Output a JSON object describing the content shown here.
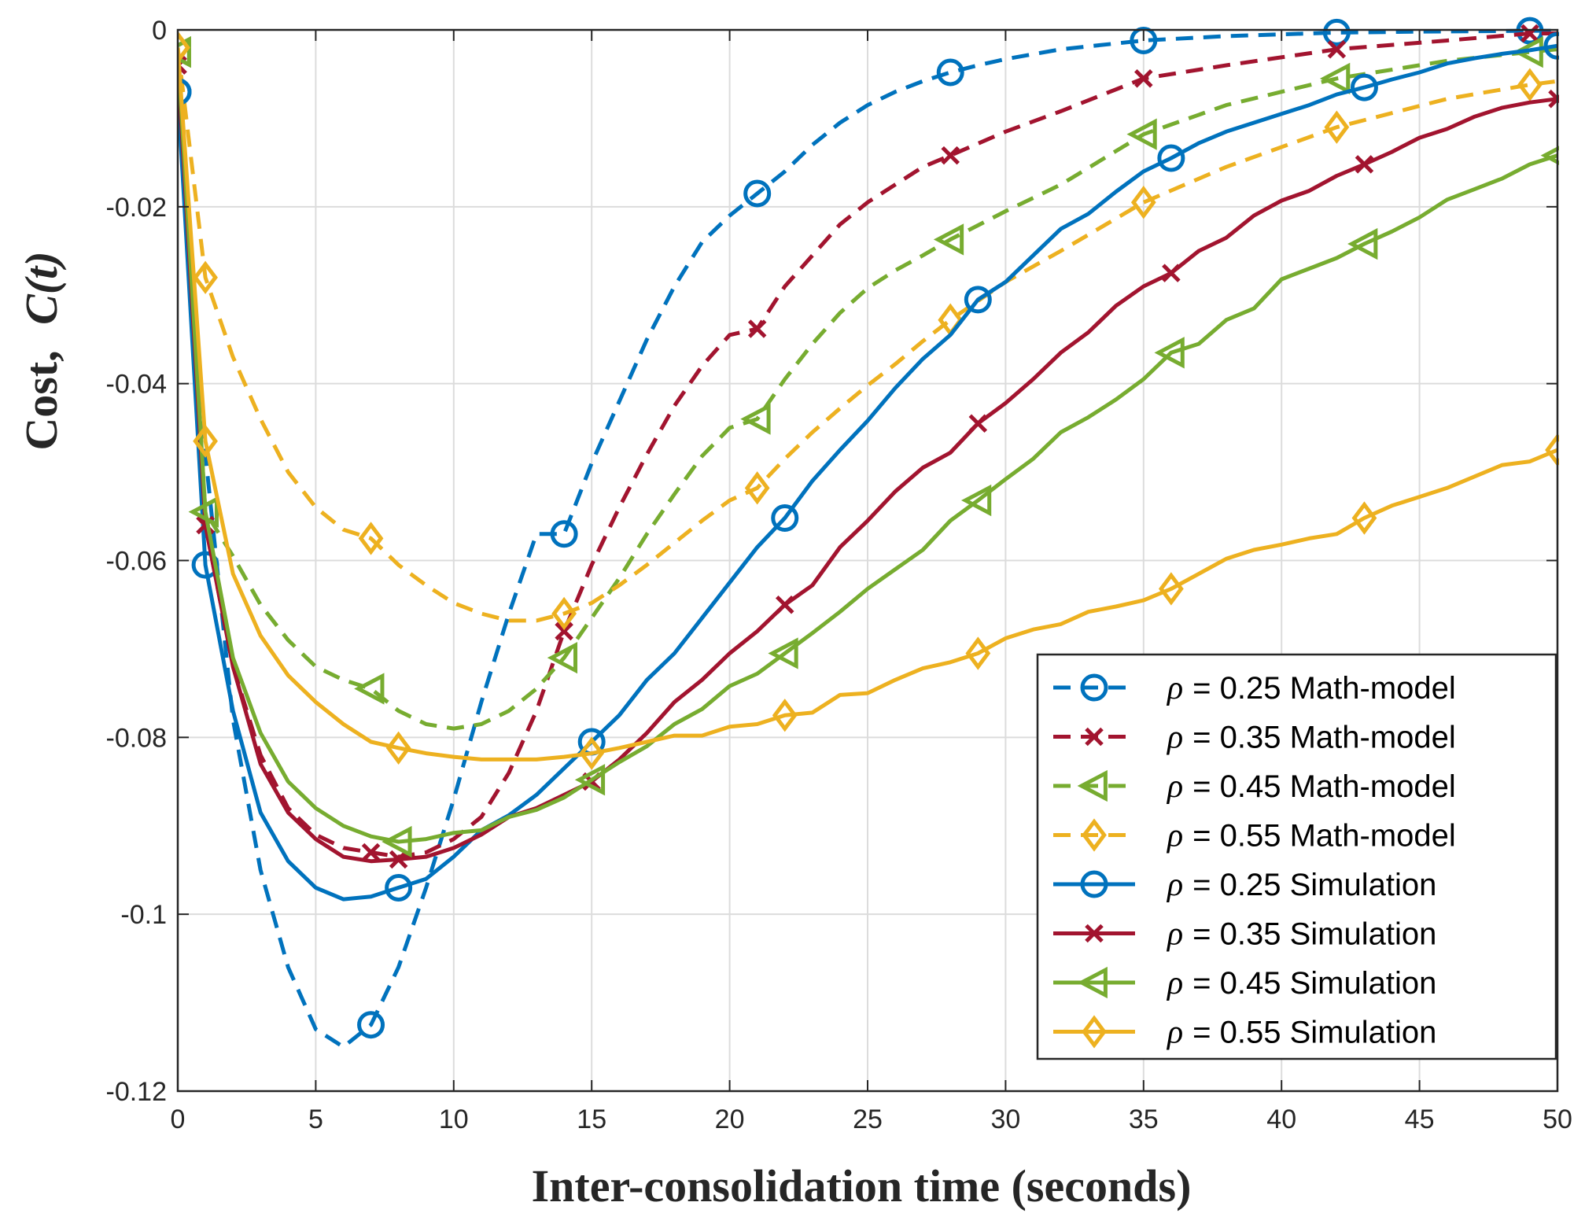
{
  "chart_data": {
    "type": "line",
    "title": "",
    "xlabel": "Inter-consolidation time (seconds)",
    "ylabel_prefix": "Cost,",
    "ylabel_math": "C(t)",
    "xlim": [
      0,
      50
    ],
    "ylim": [
      -0.12,
      0
    ],
    "xticks": [
      0,
      5,
      10,
      15,
      20,
      25,
      30,
      35,
      40,
      45,
      50
    ],
    "yticks": [
      0,
      -0.02,
      -0.04,
      -0.06,
      -0.08,
      -0.1,
      -0.12
    ],
    "xtick_labels": [
      "0",
      "5",
      "10",
      "15",
      "20",
      "25",
      "30",
      "35",
      "40",
      "45",
      "50"
    ],
    "ytick_labels": [
      "0",
      "-0.02",
      "-0.04",
      "-0.06",
      "-0.08",
      "-0.1",
      "-0.12"
    ],
    "grid": true,
    "legend_position": "bottom-right",
    "series": [
      {
        "name": "ρ = 0.25 Math-model",
        "rho_symbol": "ρ",
        "label_rest": "= 0.25 Math-model",
        "style": "dashed",
        "marker": "circle",
        "color": "#0072BD",
        "x": [
          0,
          1,
          2,
          3,
          4,
          5,
          6,
          7,
          8,
          9,
          10,
          11,
          12,
          13,
          14,
          15,
          16,
          17,
          18,
          19,
          20,
          21,
          22,
          23,
          24,
          25,
          26,
          27,
          28,
          29,
          30,
          32,
          35,
          38,
          42,
          45,
          49,
          50
        ],
        "y": [
          -0.007,
          -0.048,
          -0.078,
          -0.095,
          -0.106,
          -0.113,
          -0.115,
          -0.1125,
          -0.106,
          -0.097,
          -0.087,
          -0.076,
          -0.066,
          -0.057,
          -0.057,
          -0.049,
          -0.042,
          -0.035,
          -0.029,
          -0.024,
          -0.021,
          -0.0185,
          -0.016,
          -0.013,
          -0.0105,
          -0.0085,
          -0.007,
          -0.0058,
          -0.0048,
          -0.004,
          -0.0033,
          -0.0022,
          -0.0012,
          -0.0007,
          -0.0003,
          -0.0002,
          -0.0001,
          -0.0001
        ],
        "marker_x": [
          0,
          7,
          14,
          21,
          28,
          35,
          42,
          49
        ]
      },
      {
        "name": "ρ = 0.35 Math-model",
        "rho_symbol": "ρ",
        "label_rest": "= 0.35 Math-model",
        "style": "dashed",
        "marker": "x",
        "color": "#A2142F",
        "x": [
          0,
          1,
          2,
          3,
          4,
          5,
          6,
          7,
          8,
          9,
          10,
          11,
          12,
          13,
          14,
          15,
          16,
          17,
          18,
          19,
          20,
          21,
          22,
          23,
          24,
          25,
          26,
          27,
          28,
          30,
          32,
          35,
          38,
          42,
          46,
          49,
          50
        ],
        "y": [
          -0.004,
          -0.056,
          -0.072,
          -0.082,
          -0.088,
          -0.091,
          -0.0925,
          -0.093,
          -0.0935,
          -0.093,
          -0.0915,
          -0.089,
          -0.084,
          -0.077,
          -0.068,
          -0.0605,
          -0.054,
          -0.048,
          -0.0425,
          -0.038,
          -0.0345,
          -0.0338,
          -0.029,
          -0.0255,
          -0.022,
          -0.0195,
          -0.0175,
          -0.0155,
          -0.0142,
          -0.0115,
          -0.0092,
          -0.0055,
          -0.004,
          -0.0022,
          -0.0012,
          -0.0004,
          -0.0004
        ],
        "marker_x": [
          0,
          1,
          7,
          14,
          21,
          28,
          35,
          42,
          49
        ]
      },
      {
        "name": "ρ = 0.45 Math-model",
        "rho_symbol": "ρ",
        "label_rest": "= 0.45 Math-model",
        "style": "dashed",
        "marker": "triangle-left",
        "color": "#77AC30",
        "x": [
          0,
          1,
          2,
          3,
          4,
          5,
          6,
          7,
          8,
          9,
          10,
          11,
          12,
          13,
          14,
          15,
          16,
          17,
          18,
          19,
          20,
          21,
          22,
          23,
          24,
          25,
          26,
          27,
          28,
          30,
          32,
          35,
          38,
          42,
          46,
          49,
          50
        ],
        "y": [
          -0.0025,
          -0.0545,
          -0.0595,
          -0.065,
          -0.069,
          -0.072,
          -0.0735,
          -0.0745,
          -0.077,
          -0.0785,
          -0.079,
          -0.0785,
          -0.077,
          -0.0745,
          -0.071,
          -0.0665,
          -0.062,
          -0.057,
          -0.0525,
          -0.0482,
          -0.045,
          -0.044,
          -0.0395,
          -0.0355,
          -0.032,
          -0.0292,
          -0.0272,
          -0.0255,
          -0.0237,
          -0.0205,
          -0.0175,
          -0.0118,
          -0.0085,
          -0.0055,
          -0.0035,
          -0.0025,
          -0.0022
        ],
        "marker_x": [
          0,
          1,
          7,
          14,
          21,
          28,
          35,
          42,
          49
        ]
      },
      {
        "name": "ρ = 0.55 Math-model",
        "rho_symbol": "ρ",
        "label_rest": "= 0.55 Math-model",
        "style": "dashed",
        "marker": "diamond",
        "color": "#EDB120",
        "x": [
          0,
          1,
          2,
          3,
          4,
          5,
          6,
          7,
          8,
          9,
          10,
          11,
          12,
          13,
          14,
          15,
          16,
          17,
          18,
          19,
          20,
          21,
          22,
          23,
          24,
          25,
          26,
          27,
          28,
          30,
          32,
          35,
          38,
          42,
          46,
          49,
          50
        ],
        "y": [
          -0.002,
          -0.028,
          -0.037,
          -0.044,
          -0.05,
          -0.054,
          -0.0565,
          -0.0575,
          -0.0605,
          -0.0628,
          -0.0648,
          -0.066,
          -0.0668,
          -0.0668,
          -0.066,
          -0.0648,
          -0.0628,
          -0.0605,
          -0.058,
          -0.0555,
          -0.0532,
          -0.0518,
          -0.0485,
          -0.0455,
          -0.0428,
          -0.0402,
          -0.0378,
          -0.0352,
          -0.0328,
          -0.0285,
          -0.025,
          -0.0195,
          -0.0155,
          -0.011,
          -0.0078,
          -0.0062,
          -0.0058
        ],
        "marker_x": [
          0,
          1,
          7,
          14,
          21,
          28,
          35,
          42,
          49
        ]
      },
      {
        "name": "ρ = 0.25 Simulation",
        "rho_symbol": "ρ",
        "label_rest": "= 0.25 Simulation",
        "style": "solid",
        "marker": "circle",
        "color": "#0072BD",
        "x": [
          0,
          1,
          2,
          3,
          4,
          5,
          6,
          7,
          8,
          9,
          10,
          11,
          12,
          13,
          14,
          15,
          16,
          17,
          18,
          19,
          20,
          21,
          22,
          23,
          24,
          25,
          26,
          27,
          28,
          29,
          30,
          31,
          32,
          33,
          34,
          35,
          36,
          37,
          38,
          39,
          40,
          41,
          42,
          43,
          44,
          45,
          46,
          47,
          48,
          49,
          50
        ],
        "y": [
          -0.007,
          -0.0605,
          -0.077,
          -0.0885,
          -0.094,
          -0.097,
          -0.0983,
          -0.098,
          -0.097,
          -0.096,
          -0.0935,
          -0.0905,
          -0.0888,
          -0.0865,
          -0.0835,
          -0.0805,
          -0.0775,
          -0.0735,
          -0.0705,
          -0.0665,
          -0.0625,
          -0.0585,
          -0.0552,
          -0.051,
          -0.0475,
          -0.0442,
          -0.0405,
          -0.0372,
          -0.0345,
          -0.0305,
          -0.0285,
          -0.0255,
          -0.0225,
          -0.0208,
          -0.0183,
          -0.016,
          -0.0145,
          -0.0128,
          -0.0115,
          -0.0105,
          -0.0095,
          -0.0085,
          -0.0073,
          -0.0065,
          -0.0056,
          -0.0048,
          -0.0038,
          -0.0032,
          -0.0027,
          -0.0023,
          -0.0018
        ],
        "marker_x": [
          0,
          1,
          8,
          15,
          22,
          29,
          36,
          43,
          50
        ]
      },
      {
        "name": "ρ = 0.35 Simulation",
        "rho_symbol": "ρ",
        "label_rest": "= 0.35 Simulation",
        "style": "solid",
        "marker": "x",
        "color": "#A2142F",
        "x": [
          0,
          1,
          2,
          3,
          4,
          5,
          6,
          7,
          8,
          9,
          10,
          11,
          12,
          13,
          14,
          15,
          16,
          17,
          18,
          19,
          20,
          21,
          22,
          23,
          24,
          25,
          26,
          27,
          28,
          29,
          30,
          31,
          32,
          33,
          34,
          35,
          36,
          37,
          38,
          39,
          40,
          41,
          42,
          43,
          44,
          45,
          46,
          47,
          48,
          49,
          50
        ],
        "y": [
          -0.004,
          -0.056,
          -0.072,
          -0.083,
          -0.0885,
          -0.0915,
          -0.0935,
          -0.094,
          -0.0938,
          -0.0935,
          -0.0925,
          -0.091,
          -0.089,
          -0.088,
          -0.0865,
          -0.085,
          -0.0825,
          -0.0795,
          -0.076,
          -0.0735,
          -0.0705,
          -0.068,
          -0.065,
          -0.0628,
          -0.0585,
          -0.0555,
          -0.0522,
          -0.0495,
          -0.0478,
          -0.0445,
          -0.0422,
          -0.0395,
          -0.0365,
          -0.0342,
          -0.0312,
          -0.029,
          -0.0275,
          -0.025,
          -0.0235,
          -0.021,
          -0.0193,
          -0.0182,
          -0.0165,
          -0.0152,
          -0.0138,
          -0.0122,
          -0.0112,
          -0.0098,
          -0.0088,
          -0.0082,
          -0.0078
        ],
        "marker_x": [
          0,
          1,
          8,
          15,
          22,
          29,
          36,
          43,
          50
        ]
      },
      {
        "name": "ρ = 0.45 Simulation",
        "rho_symbol": "ρ",
        "label_rest": "= 0.45 Simulation",
        "style": "solid",
        "marker": "triangle-left",
        "color": "#77AC30",
        "x": [
          0,
          1,
          2,
          3,
          4,
          5,
          6,
          7,
          8,
          9,
          10,
          11,
          12,
          13,
          14,
          15,
          16,
          17,
          18,
          19,
          20,
          21,
          22,
          23,
          24,
          25,
          26,
          27,
          28,
          29,
          30,
          31,
          32,
          33,
          34,
          35,
          36,
          37,
          38,
          39,
          40,
          41,
          42,
          43,
          44,
          45,
          46,
          47,
          48,
          49,
          50
        ],
        "y": [
          -0.0025,
          -0.0545,
          -0.071,
          -0.0795,
          -0.085,
          -0.088,
          -0.09,
          -0.0912,
          -0.0918,
          -0.0915,
          -0.0908,
          -0.0905,
          -0.089,
          -0.0882,
          -0.0868,
          -0.0848,
          -0.0828,
          -0.081,
          -0.0785,
          -0.0768,
          -0.0742,
          -0.0728,
          -0.0705,
          -0.0682,
          -0.0658,
          -0.0632,
          -0.061,
          -0.0588,
          -0.0555,
          -0.0532,
          -0.0508,
          -0.0485,
          -0.0455,
          -0.0438,
          -0.0418,
          -0.0395,
          -0.0365,
          -0.0355,
          -0.0328,
          -0.0315,
          -0.0282,
          -0.027,
          -0.0258,
          -0.0242,
          -0.0228,
          -0.0212,
          -0.0192,
          -0.018,
          -0.0168,
          -0.0152,
          -0.0142
        ],
        "marker_x": [
          0,
          1,
          8,
          15,
          22,
          29,
          36,
          43,
          50
        ]
      },
      {
        "name": "ρ = 0.55 Simulation",
        "rho_symbol": "ρ",
        "label_rest": "= 0.55 Simulation",
        "style": "solid",
        "marker": "diamond",
        "color": "#EDB120",
        "x": [
          0,
          1,
          2,
          3,
          4,
          5,
          6,
          7,
          8,
          9,
          10,
          11,
          12,
          13,
          14,
          15,
          16,
          17,
          18,
          19,
          20,
          21,
          22,
          23,
          24,
          25,
          26,
          27,
          28,
          29,
          30,
          31,
          32,
          33,
          34,
          35,
          36,
          37,
          38,
          39,
          40,
          41,
          42,
          43,
          44,
          45,
          46,
          47,
          48,
          49,
          50
        ],
        "y": [
          -0.002,
          -0.0465,
          -0.0615,
          -0.0685,
          -0.073,
          -0.076,
          -0.0785,
          -0.0805,
          -0.0812,
          -0.0818,
          -0.0822,
          -0.0825,
          -0.0825,
          -0.0825,
          -0.0822,
          -0.0818,
          -0.0812,
          -0.0805,
          -0.0798,
          -0.0798,
          -0.0788,
          -0.0785,
          -0.0775,
          -0.0772,
          -0.0752,
          -0.075,
          -0.0735,
          -0.0722,
          -0.0715,
          -0.0705,
          -0.0688,
          -0.0678,
          -0.0672,
          -0.0658,
          -0.0652,
          -0.0645,
          -0.0632,
          -0.0615,
          -0.0598,
          -0.0588,
          -0.0582,
          -0.0575,
          -0.057,
          -0.0552,
          -0.0538,
          -0.0528,
          -0.0518,
          -0.0505,
          -0.0492,
          -0.0488,
          -0.0475
        ],
        "marker_x": [
          0,
          1,
          8,
          15,
          22,
          29,
          36,
          43,
          50
        ]
      }
    ]
  }
}
